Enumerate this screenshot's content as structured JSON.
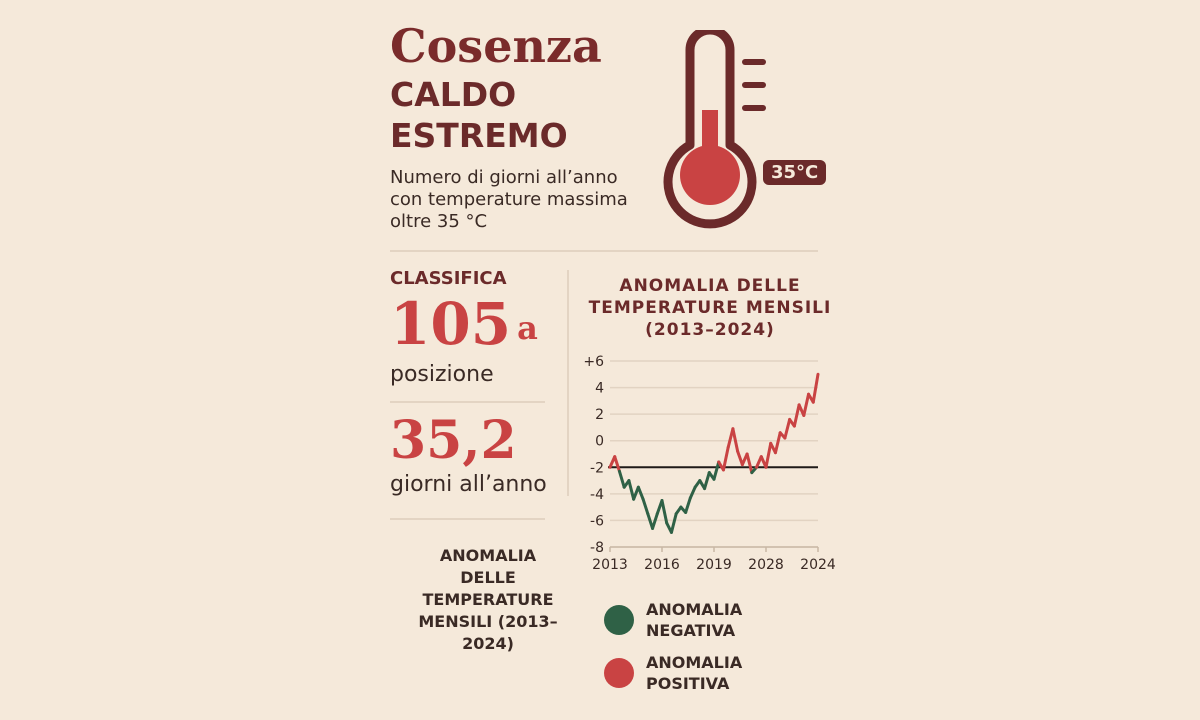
{
  "header": {
    "title": "Cosenza",
    "subtitle_line1": "CALDO",
    "subtitle_line2": "ESTREMO",
    "description": "Numero di giorni all’anno con temperature massima oltre 35 °C"
  },
  "thermometer": {
    "badge": "35°C",
    "colors": {
      "outline": "#6b2a2a",
      "fill": "#c94343"
    }
  },
  "ranking": {
    "label": "CLASSIFICA",
    "value": "105",
    "suffix": "a",
    "unit": "posizione"
  },
  "days": {
    "value": "35,2",
    "unit": "giorni all’anno"
  },
  "side_label": "ANOMALIA DELLE TEMPERATURE MENSILI (2013–2024)",
  "legend": [
    {
      "label": "ANOMALIA NEGATIVA",
      "color": "#2f6146"
    },
    {
      "label": "ANOMALIA POSITIVA",
      "color": "#c94343"
    }
  ],
  "chart_data": {
    "type": "line",
    "title": "ANOMALIA DELLE TEMPERATURE MENSILI (2013–2024)",
    "xlabel": "",
    "ylabel": "",
    "ylim": [
      -8,
      6
    ],
    "y_ticks": [
      "-8",
      "-6",
      "-4",
      "-2",
      "0",
      "2",
      "4",
      "+6"
    ],
    "x_ticks": [
      "2013",
      "2016",
      "2019",
      "2028",
      "2024"
    ],
    "reference_line": -2,
    "grid": true,
    "series": [
      {
        "values": [
          -2,
          -1.2,
          -2.3,
          -3.5,
          -3.0,
          -4.4,
          -3.5,
          -4.4,
          -5.5,
          -6.6,
          -5.5,
          -4.5,
          -6.2,
          -6.9,
          -5.5,
          -5.0,
          -5.4,
          -4.3,
          -3.5,
          -3.0,
          -3.6,
          -2.4,
          -2.9,
          -1.6,
          -2.2,
          -0.5,
          0.9,
          -0.8,
          -1.8,
          -1.0,
          -2.4,
          -2.0,
          -1.2,
          -2.0,
          -0.2,
          -0.9,
          0.6,
          0.2,
          1.6,
          1.1,
          2.7,
          1.9,
          3.5,
          2.9,
          5.0
        ],
        "colors_by_sign": {
          "below_reference": "#2f6146",
          "above_reference": "#c94343"
        }
      }
    ]
  }
}
